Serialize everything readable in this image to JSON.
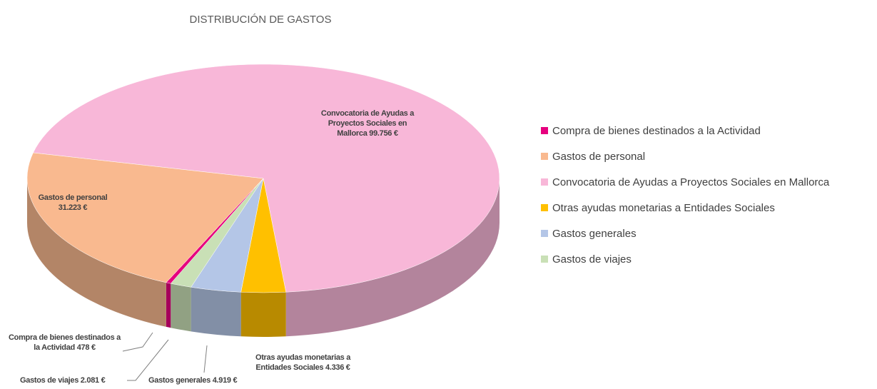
{
  "chart_data": {
    "type": "pie",
    "title": "DISTRIBUCIÓN DE GASTOS",
    "categories": [
      "Compra de bienes destinados a la Actividad",
      "Gastos de personal",
      "Convocatoria de Ayudas a Proyectos Sociales en Mallorca",
      "Otras ayudas monetarias a Entidades Sociales",
      "Gastos generales",
      "Gastos de viajes"
    ],
    "values": [
      478,
      31223,
      99756,
      4336,
      4919,
      2081
    ],
    "value_labels": [
      "478 €",
      "31.223 €",
      "99.756 €",
      "4.336 €",
      "4.919 €",
      "2.081 €"
    ],
    "colors": [
      "#e6007e",
      "#f9b98f",
      "#f8b7d8",
      "#ffc000",
      "#b4c6e7",
      "#c9e0b6"
    ],
    "legend": "right"
  }
}
